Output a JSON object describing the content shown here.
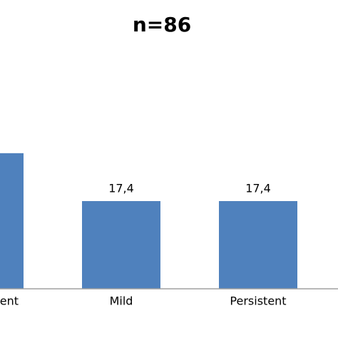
{
  "chart_data": {
    "type": "bar",
    "title": "n=86",
    "categories": [
      "Intermittent",
      "Mild",
      "Persistent"
    ],
    "values": [
      26.9,
      17.4,
      17.4
    ],
    "value_labels": [
      null,
      "17,4",
      "17,4"
    ],
    "color": "#4f81bd"
  }
}
